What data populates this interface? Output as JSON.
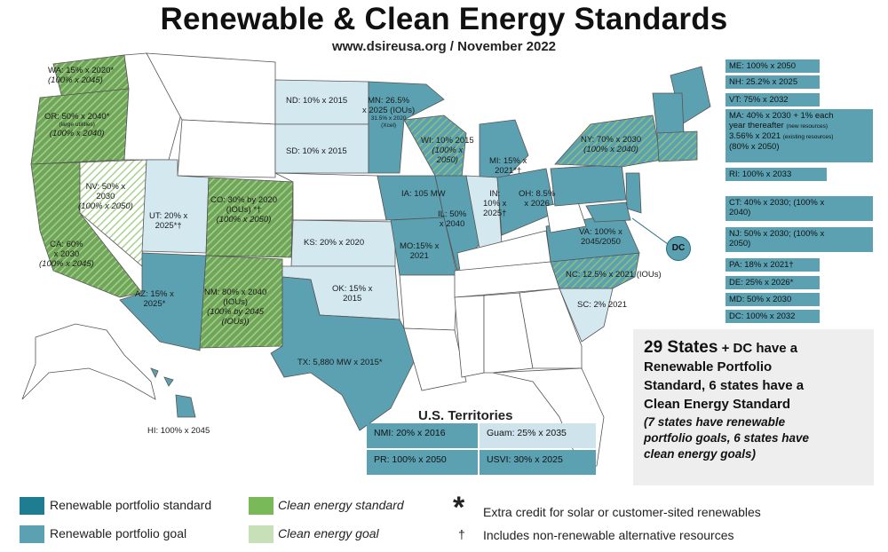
{
  "title": "Renewable & Clean Energy Standards",
  "subtitle": "www.dsireusa.org / November 2022",
  "colors": {
    "rps": "#1f7d91",
    "rpg": "#5ba1b2",
    "ces": "#7ab95a",
    "ceg": "#c8e0b8",
    "no_policy": "#ffffff",
    "goal_light": "#cfe3ec"
  },
  "states": {
    "WA": {
      "line1": "WA: 15% x 2020*",
      "line2": "(100% x 2045)"
    },
    "OR": {
      "line1": "OR: 50% x 2040*",
      "small": "(large utilities)",
      "line2": "(100% x 2040)"
    },
    "NV": {
      "line1": "NV: 50% x",
      "line2": "2030",
      "line3": "(100% x 2050)"
    },
    "CA": {
      "line1": "CA: 60%",
      "line2": "x 2030",
      "line3": "(100% x 2045)"
    },
    "UT": {
      "line1": "UT: 20% x",
      "line2": "2025*†"
    },
    "CO": {
      "line1": "CO: 30% by 2020",
      "line2": "(IOUs) *†",
      "line3": "(100% x 2050)"
    },
    "AZ": {
      "line1": "AZ: 15% x",
      "line2": "2025*"
    },
    "NM": {
      "line1": "NM: 80% x 2040",
      "line2": "(IOUs)",
      "line3": "(100% by 2045",
      "line4": "(IOUs))"
    },
    "ND": {
      "line1": "ND: 10% x 2015"
    },
    "SD": {
      "line1": "SD: 10% x 2015"
    },
    "MN": {
      "line1": "MN: 26.5%",
      "line2": "x 2025 (IOUs)",
      "small1": "31.5% x 2020",
      "small2": "(Xcel)"
    },
    "WI": {
      "line1": "WI: 10% 2015",
      "line2": "(100% x",
      "line3": "2050)"
    },
    "MI": {
      "line1": "MI: 15% x",
      "line2": "2021*†"
    },
    "IA": {
      "line1": "IA: 105 MW"
    },
    "IL": {
      "line1": "IL: 50%",
      "line2": "x 2040"
    },
    "IN": {
      "line1": "IN:",
      "line2": "10% x",
      "line3": "2025†"
    },
    "OH": {
      "line1": "OH: 8.5%",
      "line2": "x 2026"
    },
    "KS": {
      "line1": "KS: 20% x 2020"
    },
    "MO": {
      "line1": "MO:15% x",
      "line2": "2021"
    },
    "OK": {
      "line1": "OK: 15% x",
      "line2": "2015"
    },
    "TX": {
      "line1": "TX: 5,880 MW x 2015*"
    },
    "NY": {
      "line1": "NY: 70% x 2030",
      "line2": "(100% x 2040)"
    },
    "VA": {
      "line1": "VA: 100% x",
      "line2": "2045/2050"
    },
    "NC": {
      "line1": "NC: 12.5% x 2021 (IOUs)"
    },
    "SC": {
      "line1": "SC: 2% 2021"
    },
    "HI": {
      "line1": "HI: 100% x 2045"
    },
    "DC": {
      "line1": "DC"
    }
  },
  "northeast": {
    "me": "ME: 100% x 2050",
    "nh": "NH: 25.2% x 2025",
    "vt": "VT: 75% x 2032",
    "ma_1": "MA: 40% x 2030 + 1% each",
    "ma_2": "year thereafter",
    "ma_2_small": "(new resources)",
    "ma_3": "3.56% x 2021",
    "ma_3_small": "(existing resources)",
    "ma_4": "(80% x 2050)",
    "ri": "RI: 100% x 2033",
    "ct_1": "CT: 40% x 2030; (100% x",
    "ct_2": "2040)",
    "nj_1": "NJ: 50% x 2030; (100% x",
    "nj_2": "2050)",
    "pa": "PA: 18% x 2021†",
    "de": "DE: 25% x 2026*",
    "md": "MD: 50% x 2030",
    "dc": "DC: 100% x 2032"
  },
  "summary": {
    "count_bold": "29 States",
    "line1_rest": "+ DC have a",
    "line2": "Renewable Portfolio",
    "line3": "Standard, 6 states have a",
    "line4": "Clean Energy Standard",
    "goals_1": "(7 states have renewable",
    "goals_2": "portfolio goals, 6 states have",
    "goals_3": "clean energy goals)"
  },
  "territories": {
    "title": "U.S. Territories",
    "nmi": "NMI: 20% x 2016",
    "guam": "Guam: 25% x 2035",
    "pr": "PR: 100% x 2050",
    "usvi": "USVI: 30% x 2025"
  },
  "legend": {
    "rps": "Renewable portfolio standard",
    "rpg": "Renewable portfolio goal",
    "ces": "Clean energy standard",
    "ceg": "Clean energy goal",
    "asterisk_symbol": "*",
    "asterisk_text": "Extra credit for solar or customer-sited renewables",
    "dagger_symbol": "†",
    "dagger_text": "Includes non-renewable alternative resources"
  }
}
